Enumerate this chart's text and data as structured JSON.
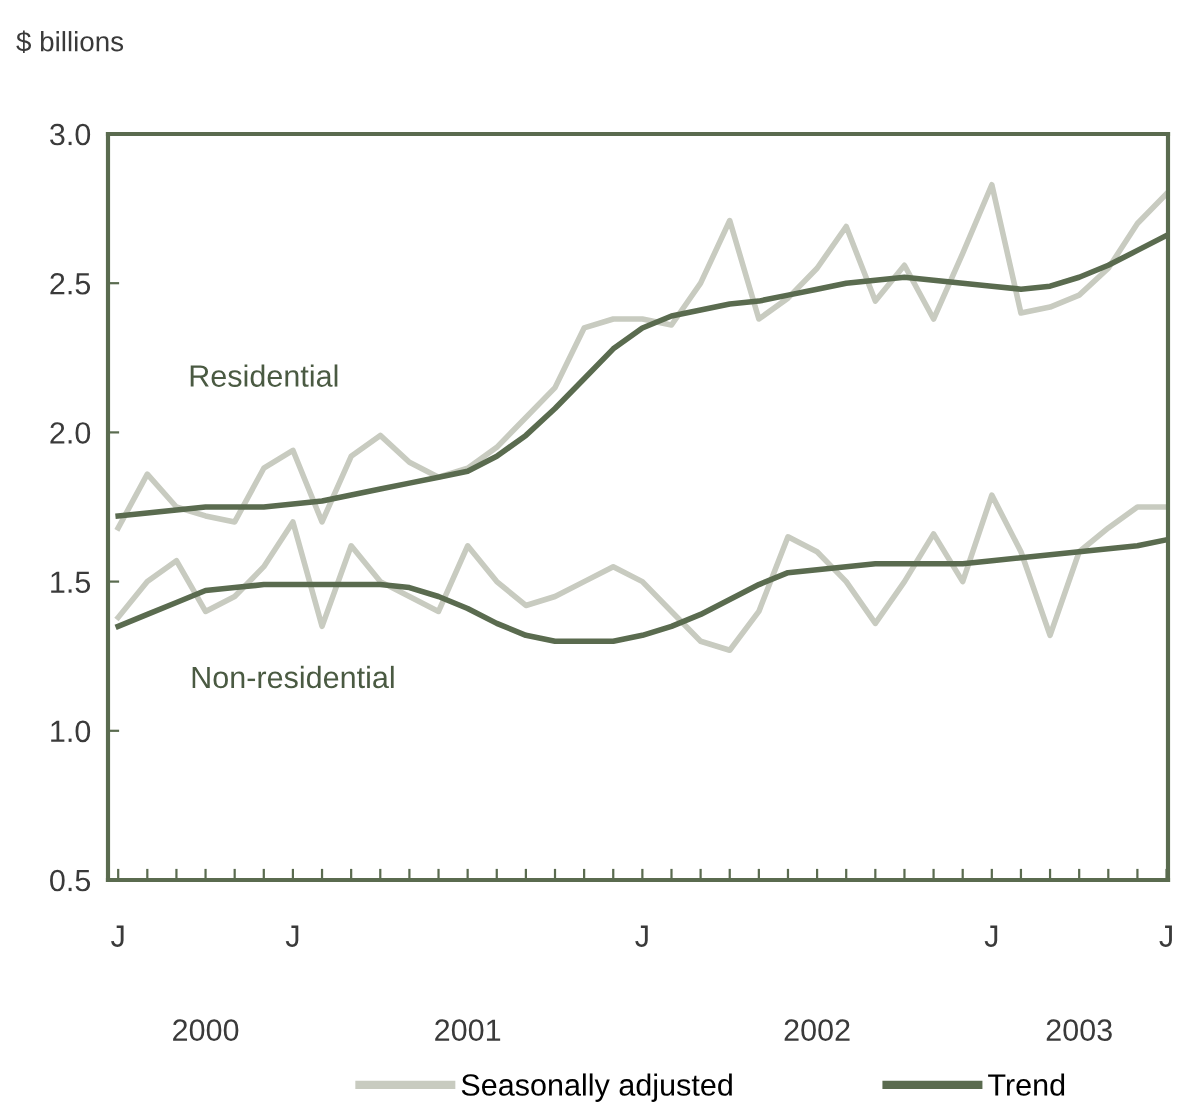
{
  "chart_data": {
    "type": "line",
    "ylabel": "$ billions",
    "categories": [
      "J",
      null,
      null,
      null,
      null,
      null,
      "J",
      null,
      null,
      null,
      null,
      null,
      null,
      null,
      null,
      null,
      null,
      null,
      "J",
      null,
      null,
      null,
      null,
      null,
      null,
      null,
      null,
      null,
      null,
      null,
      "J",
      null,
      null,
      null,
      null,
      null,
      "J"
    ],
    "series": [
      {
        "name": "Seasonally adjusted",
        "color": "#c8cbc0",
        "values": [
          1.68,
          1.86,
          1.75,
          1.72,
          1.7,
          1.88,
          1.94,
          1.7,
          1.92,
          1.99,
          1.9,
          1.85,
          1.88,
          1.95,
          2.05,
          2.15,
          2.35,
          2.38,
          2.38,
          2.36,
          2.5,
          2.71,
          2.38,
          2.45,
          2.55,
          2.69,
          2.44,
          2.56,
          2.38,
          2.6,
          2.83,
          2.4,
          2.42,
          2.46,
          2.55,
          2.7,
          2.8
        ]
      },
      {
        "color": "#c8cbc0",
        "values": [
          1.38,
          1.5,
          1.57,
          1.4,
          1.45,
          1.55,
          1.7,
          1.35,
          1.62,
          1.5,
          1.45,
          1.4,
          1.62,
          1.5,
          1.42,
          1.45,
          1.5,
          1.55,
          1.5,
          1.4,
          1.3,
          1.27,
          1.4,
          1.65,
          1.6,
          1.5,
          1.36,
          1.5,
          1.66,
          1.5,
          1.79,
          1.6,
          1.32,
          1.6,
          1.68,
          1.75,
          1.75
        ]
      },
      {
        "name": "Trend",
        "color": "#5a6b4f",
        "values": [
          1.72,
          1.73,
          1.74,
          1.75,
          1.75,
          1.75,
          1.76,
          1.77,
          1.79,
          1.81,
          1.83,
          1.85,
          1.87,
          1.92,
          1.99,
          2.08,
          2.18,
          2.28,
          2.35,
          2.39,
          2.41,
          2.43,
          2.44,
          2.46,
          2.48,
          2.5,
          2.51,
          2.52,
          2.51,
          2.5,
          2.49,
          2.48,
          2.49,
          2.52,
          2.56,
          2.61,
          2.66
        ]
      },
      {
        "color": "#5a6b4f",
        "values": [
          1.35,
          1.39,
          1.43,
          1.47,
          1.48,
          1.49,
          1.49,
          1.49,
          1.49,
          1.49,
          1.48,
          1.45,
          1.41,
          1.36,
          1.32,
          1.3,
          1.3,
          1.3,
          1.32,
          1.35,
          1.39,
          1.44,
          1.49,
          1.53,
          1.54,
          1.55,
          1.56,
          1.56,
          1.56,
          1.56,
          1.57,
          1.58,
          1.59,
          1.6,
          1.61,
          1.62,
          1.64
        ]
      }
    ],
    "ylim": [
      0.5,
      3.0
    ],
    "yticks": [
      {
        "value": 0.5,
        "label": "0.5"
      },
      {
        "value": 1.0,
        "label": "1.0"
      },
      {
        "value": 1.5,
        "label": "1.5"
      },
      {
        "value": 2.0,
        "label": "2.0"
      },
      {
        "value": 2.5,
        "label": "2.5"
      },
      {
        "value": 3.0,
        "label": "3.0"
      }
    ],
    "annotations": [
      "Residential",
      "Non-residential",
      "2000",
      "2001",
      "2002",
      "2003"
    ],
    "legend": "bottom",
    "grid": false,
    "marker": "none",
    "line_style": "solid"
  }
}
